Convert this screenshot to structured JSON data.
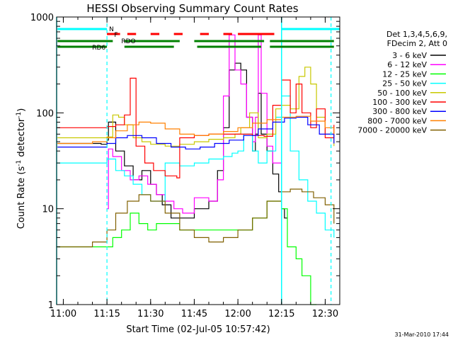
{
  "chart_data": {
    "type": "line",
    "title": "HESSI Observing Summary Count Rates",
    "xlabel": "Start Time (02-Jul-05 10:57:42)",
    "ylabel_prefix": "Count Rate (s",
    "ylabel_sup1": "-1",
    "ylabel_mid": " detector",
    "ylabel_sup2": "-1",
    "ylabel_suffix": ")",
    "y_scale": "log",
    "ylim": [
      1,
      1000
    ],
    "xlim": [
      "10:57:42",
      "12:35:00"
    ],
    "x_ticks": [
      "11:00",
      "11:15",
      "11:30",
      "11:45",
      "12:00",
      "12:15",
      "12:30"
    ],
    "y_ticks": [
      "1",
      "10",
      "100",
      "1000"
    ],
    "grid": false,
    "legend_position": "right",
    "legend_header": [
      "Det 1,3,4,5,6,9,",
      "FDecim 2, Att 0"
    ],
    "footer_date": "31-Mar-2010 17:44",
    "dashed_vlines": [
      "11:15:00",
      "12:32:00"
    ],
    "solid_vlines": [
      "10:57:42",
      "12:15:00"
    ],
    "flags": [
      {
        "label": "N",
        "color": "#00ffff",
        "segments": [
          [
            "10:58:00",
            "11:15:00"
          ],
          [
            "12:15:00",
            "12:35:00"
          ]
        ]
      },
      {
        "label": "F",
        "color": "#ff0000",
        "segments": [
          [
            "11:15:00",
            "11:19:30"
          ],
          [
            "11:22:00",
            "11:25:00"
          ],
          [
            "11:30:00",
            "11:33:00"
          ],
          [
            "11:38:00",
            "11:41:00"
          ],
          [
            "11:47:00",
            "11:50:00"
          ],
          [
            "11:55:00",
            "11:58:00"
          ],
          [
            "12:00:00",
            "12:12:30"
          ]
        ]
      },
      {
        "label": "RDO",
        "color": "#008000",
        "segments": [
          [
            "10:58:00",
            "11:17:00"
          ],
          [
            "11:21:00",
            "11:40:00"
          ],
          [
            "11:45:00",
            "12:09:00"
          ],
          [
            "12:11:00",
            "12:33:00"
          ]
        ]
      },
      {
        "label": "RD6",
        "color": "#008000",
        "segments": [
          [
            "10:58:00",
            "11:15:00"
          ],
          [
            "11:21:00",
            "11:38:00"
          ],
          [
            "11:46:00",
            "12:08:00"
          ],
          [
            "12:11:00",
            "12:33:00"
          ]
        ]
      }
    ],
    "series": [
      {
        "name": "3 - 6 keV",
        "color": "#000000",
        "x": [
          "10:58",
          "11:13",
          "11:15",
          "11:15:30",
          "11:18",
          "11:21",
          "11:24",
          "11:27",
          "11:30",
          "11:32",
          "11:34",
          "11:37",
          "11:40",
          "11:45",
          "11:50",
          "11:53",
          "11:55",
          "11:57",
          "11:59",
          "12:01",
          "12:03",
          "12:05",
          "12:06",
          "12:07",
          "12:08",
          "12:10",
          "12:12",
          "12:14",
          "12:15",
          "12:16",
          "12:17"
        ],
        "y": [
          48,
          47,
          52,
          80,
          40,
          28,
          20,
          25,
          18,
          14,
          11,
          8,
          8,
          10,
          12,
          25,
          70,
          280,
          330,
          280,
          90,
          40,
          60,
          160,
          60,
          40,
          23,
          15,
          10,
          8,
          8
        ]
      },
      {
        "name": "6 - 12 keV",
        "color": "#ff00ff",
        "x": [
          "11:15",
          "11:15:30",
          "11:17",
          "11:20",
          "11:23",
          "11:26",
          "11:29",
          "11:32",
          "11:35",
          "11:38",
          "11:41",
          "11:45",
          "11:50",
          "11:53",
          "11:55",
          "11:57",
          "11:59",
          "12:01",
          "12:03",
          "12:05",
          "12:06",
          "12:07",
          "12:08",
          "12:10",
          "12:12",
          "12:15"
        ],
        "y": [
          10,
          42,
          35,
          25,
          20,
          22,
          18,
          14,
          12,
          10,
          9,
          13,
          12,
          20,
          150,
          650,
          280,
          200,
          90,
          50,
          90,
          650,
          160,
          45,
          30,
          20
        ]
      },
      {
        "name": "12 - 25 keV",
        "color": "#00ff00",
        "x": [
          "10:58",
          "11:10",
          "11:15",
          "11:17",
          "11:20",
          "11:23",
          "11:26",
          "11:29",
          "11:32",
          "11:35",
          "11:40",
          "12:00",
          "12:05",
          "12:10",
          "12:15",
          "12:17",
          "12:20",
          "12:22",
          "12:25",
          "12:27"
        ],
        "y": [
          4,
          4,
          4,
          5,
          6,
          9,
          7,
          6,
          7,
          7,
          6,
          6,
          8,
          12,
          10,
          4,
          3,
          2,
          1,
          1
        ]
      },
      {
        "name": "25 - 50 keV",
        "color": "#00ffff",
        "x": [
          "10:58",
          "11:10",
          "11:15",
          "11:18",
          "11:21",
          "11:24",
          "11:27",
          "11:30",
          "11:35",
          "11:40",
          "11:45",
          "11:50",
          "11:55",
          "11:58",
          "12:00",
          "12:02",
          "12:05",
          "12:07",
          "12:10",
          "12:13",
          "12:15",
          "12:18",
          "12:21",
          "12:24",
          "12:27",
          "12:30",
          "12:33"
        ],
        "y": [
          30,
          30,
          33,
          25,
          22,
          18,
          14,
          12,
          30,
          28,
          30,
          33,
          35,
          38,
          40,
          60,
          40,
          30,
          40,
          90,
          150,
          40,
          20,
          12,
          9,
          6,
          5
        ]
      },
      {
        "name": "50 - 100 keV",
        "color": "#c8c800",
        "x": [
          "10:58",
          "11:10",
          "11:15",
          "11:17",
          "11:19",
          "11:21",
          "11:24",
          "11:27",
          "11:30",
          "11:35",
          "11:40",
          "11:45",
          "11:50",
          "11:55",
          "11:59",
          "12:01",
          "12:04",
          "12:07",
          "12:10",
          "12:13",
          "12:15",
          "12:18",
          "12:21",
          "12:23",
          "12:25",
          "12:27",
          "12:30",
          "12:33"
        ],
        "y": [
          55,
          55,
          56,
          95,
          90,
          75,
          55,
          50,
          47,
          45,
          47,
          50,
          53,
          55,
          60,
          70,
          100,
          55,
          60,
          110,
          120,
          110,
          240,
          300,
          200,
          90,
          60,
          45
        ]
      },
      {
        "name": "100 - 300 keV",
        "color": "#ff0000",
        "x": [
          "10:58",
          "11:10",
          "11:15",
          "11:18",
          "11:21",
          "11:23",
          "11:25",
          "11:28",
          "11:31",
          "11:35",
          "11:39",
          "11:40",
          "11:45",
          "11:50",
          "11:55",
          "12:00",
          "12:05",
          "12:09",
          "12:12",
          "12:15",
          "12:18",
          "12:20",
          "12:22",
          "12:25",
          "12:27",
          "12:30",
          "12:33"
        ],
        "y": [
          70,
          70,
          72,
          75,
          95,
          230,
          45,
          30,
          25,
          22,
          21,
          55,
          58,
          60,
          60,
          60,
          58,
          57,
          120,
          220,
          100,
          200,
          100,
          70,
          110,
          55,
          75
        ]
      },
      {
        "name": "300 - 800 keV",
        "color": "#0000ff",
        "x": [
          "10:58",
          "11:10",
          "11:15",
          "11:18",
          "11:22",
          "11:27",
          "11:32",
          "11:37",
          "11:42",
          "11:47",
          "11:52",
          "11:57",
          "12:02",
          "12:07",
          "12:12",
          "12:16",
          "12:20",
          "12:24",
          "12:28",
          "12:33"
        ],
        "y": [
          44,
          44,
          48,
          55,
          58,
          55,
          48,
          44,
          42,
          44,
          48,
          52,
          58,
          68,
          80,
          88,
          90,
          75,
          60,
          48
        ]
      },
      {
        "name": "800 - 7000 keV",
        "color": "#ff8000",
        "x": [
          "10:58",
          "11:05",
          "11:10",
          "11:15",
          "11:18",
          "11:22",
          "11:26",
          "11:30",
          "11:35",
          "11:40",
          "11:45",
          "11:50",
          "11:55",
          "12:00",
          "12:05",
          "12:10",
          "12:15",
          "12:20",
          "12:25",
          "12:30",
          "12:33"
        ],
        "y": [
          48,
          48,
          50,
          55,
          65,
          75,
          80,
          78,
          68,
          60,
          58,
          60,
          64,
          70,
          78,
          85,
          90,
          92,
          82,
          70,
          60
        ]
      },
      {
        "name": "7000 - 20000 keV",
        "color": "#806000",
        "x": [
          "10:58",
          "11:05",
          "11:10",
          "11:15",
          "11:18",
          "11:22",
          "11:26",
          "11:30",
          "11:35",
          "11:40",
          "11:45",
          "11:50",
          "11:55",
          "12:00",
          "12:05",
          "12:10",
          "12:15",
          "12:18",
          "12:22",
          "12:26",
          "12:30",
          "12:33"
        ],
        "y": [
          4,
          4,
          4.5,
          6,
          9,
          12,
          14,
          12,
          9,
          6,
          5,
          4.5,
          5,
          6,
          8,
          12,
          15,
          16,
          15,
          13,
          11,
          7
        ]
      }
    ]
  }
}
